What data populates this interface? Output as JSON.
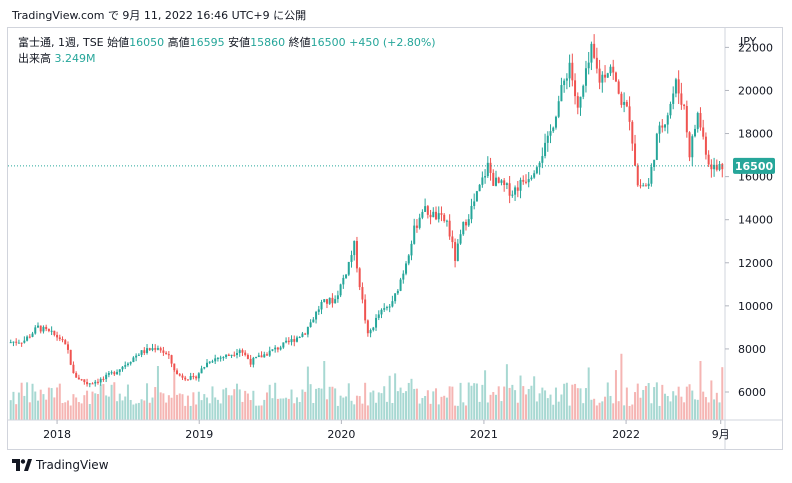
{
  "header": {
    "text": "TradingView.com で 9月 11, 2022 16:46 UTC+9 に公開"
  },
  "legend": {
    "symbol": "富士通, 1週, TSE",
    "open_label": "始値",
    "open": "16050",
    "high_label": "高値",
    "high": "16595",
    "low_label": "安値",
    "low": "15860",
    "close_label": "終値",
    "close": "16500",
    "change": "+450 (+2.80%)",
    "volume_label": "出来高",
    "volume": "3.249M"
  },
  "colors": {
    "up": "#26a69a",
    "down": "#ef5350",
    "up_vol": "#a7d8d2",
    "down_vol": "#f5b5b3"
  },
  "footer": {
    "brand": "TradingView"
  },
  "chart_data": {
    "type": "candlestick",
    "currency": "JPY",
    "ylim": [
      4700,
      22900
    ],
    "y_ticks": [
      6000,
      8000,
      10000,
      12000,
      14000,
      16000,
      18000,
      20000,
      22000
    ],
    "x_tick_labels": [
      "2018",
      "2019",
      "2020",
      "2021",
      "2022",
      "9月"
    ],
    "last_price": 16500,
    "price_path": [
      [
        "2017-09-04",
        8300
      ],
      [
        "2017-10-16",
        8400
      ],
      [
        "2017-11-20",
        9000
      ],
      [
        "2017-12-25",
        8700
      ],
      [
        "2018-01-15",
        8500
      ],
      [
        "2018-02-05",
        7900
      ],
      [
        "2018-02-19",
        6800
      ],
      [
        "2018-03-26",
        6400
      ],
      [
        "2018-05-07",
        6600
      ],
      [
        "2018-06-18",
        7100
      ],
      [
        "2018-08-06",
        7800
      ],
      [
        "2018-09-24",
        8100
      ],
      [
        "2018-10-22",
        7600
      ],
      [
        "2018-11-12",
        6800
      ],
      [
        "2018-12-24",
        6600
      ],
      [
        "2019-02-04",
        7500
      ],
      [
        "2019-03-25",
        7700
      ],
      [
        "2019-04-22",
        8000
      ],
      [
        "2019-05-20",
        7400
      ],
      [
        "2019-07-01",
        7800
      ],
      [
        "2019-08-26",
        8300
      ],
      [
        "2019-10-07",
        8800
      ],
      [
        "2019-11-18",
        10100
      ],
      [
        "2019-12-23",
        10300
      ],
      [
        "2020-01-20",
        11600
      ],
      [
        "2020-02-10",
        12800
      ],
      [
        "2020-02-24",
        11000
      ],
      [
        "2020-03-16",
        8600
      ],
      [
        "2020-04-13",
        9600
      ],
      [
        "2020-05-18",
        10100
      ],
      [
        "2020-06-15",
        11600
      ],
      [
        "2020-07-13",
        13500
      ],
      [
        "2020-08-03",
        14500
      ],
      [
        "2020-08-31",
        14200
      ],
      [
        "2020-10-05",
        13900
      ],
      [
        "2020-10-26",
        12200
      ],
      [
        "2020-11-16",
        13700
      ],
      [
        "2020-12-14",
        14800
      ],
      [
        "2021-01-18",
        16500
      ],
      [
        "2021-02-01",
        15800
      ],
      [
        "2021-03-22",
        15300
      ],
      [
        "2021-05-10",
        16200
      ],
      [
        "2021-06-21",
        17600
      ],
      [
        "2021-07-19",
        19500
      ],
      [
        "2021-08-16",
        21300
      ],
      [
        "2021-09-06",
        19000
      ],
      [
        "2021-10-11",
        21800
      ],
      [
        "2021-11-01",
        20500
      ],
      [
        "2021-11-29",
        21200
      ],
      [
        "2021-12-20",
        19800
      ],
      [
        "2022-01-17",
        18800
      ],
      [
        "2022-02-07",
        15600
      ],
      [
        "2022-03-07",
        15600
      ],
      [
        "2022-03-28",
        17800
      ],
      [
        "2022-04-25",
        19000
      ],
      [
        "2022-05-16",
        20300
      ],
      [
        "2022-06-06",
        19200
      ],
      [
        "2022-06-20",
        17100
      ],
      [
        "2022-07-11",
        18900
      ],
      [
        "2022-08-08",
        16700
      ],
      [
        "2022-08-29",
        16300
      ],
      [
        "2022-09-05",
        16500
      ]
    ]
  }
}
